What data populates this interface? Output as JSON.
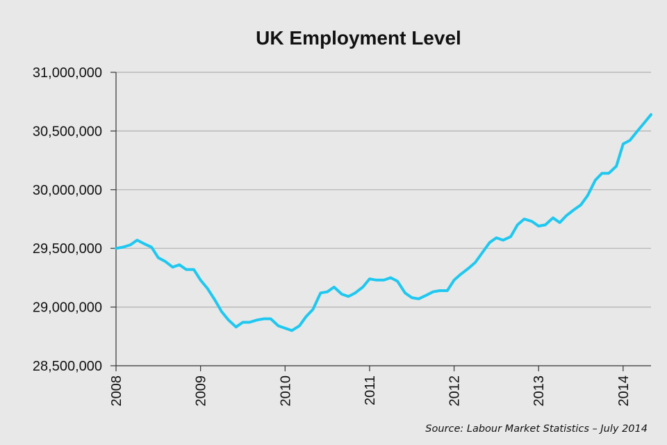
{
  "chart_data": {
    "type": "line",
    "title": "UK Employment Level",
    "source": "Source: Labour Market Statistics – July 2014",
    "xlabel": "",
    "ylabel": "",
    "xlim": [
      2008,
      2014.33
    ],
    "ylim": [
      28500000,
      31000000
    ],
    "y_ticks": [
      28500000,
      29000000,
      29500000,
      30000000,
      30500000,
      31000000
    ],
    "y_tick_labels": [
      "28,500,000",
      "29,000,000",
      "29,500,000",
      "30,000,000",
      "30,500,000",
      "31,000,000"
    ],
    "x_ticks": [
      2008,
      2009,
      2010,
      2011,
      2012,
      2013,
      2014
    ],
    "x_tick_labels": [
      "2008",
      "2009",
      "2010",
      "2011",
      "2012",
      "2013",
      "2014"
    ],
    "grid": true,
    "legend": "none",
    "colors": {
      "line": "#1ec8f0",
      "background": "#e8e8e8",
      "grid": "#b0b0b0"
    },
    "series": [
      {
        "x": [
          2008.0,
          2008.08,
          2008.17,
          2008.25,
          2008.33,
          2008.42,
          2008.5,
          2008.58,
          2008.67,
          2008.75,
          2008.83,
          2008.92,
          2009.0,
          2009.08,
          2009.17,
          2009.25,
          2009.33,
          2009.42,
          2009.5,
          2009.58,
          2009.67,
          2009.75,
          2009.83,
          2009.92,
          2010.0,
          2010.08,
          2010.17,
          2010.25,
          2010.33,
          2010.42,
          2010.5,
          2010.58,
          2010.67,
          2010.75,
          2010.83,
          2010.92,
          2011.0,
          2011.08,
          2011.17,
          2011.25,
          2011.33,
          2011.42,
          2011.5,
          2011.58,
          2011.67,
          2011.75,
          2011.83,
          2011.92,
          2012.0,
          2012.08,
          2012.17,
          2012.25,
          2012.33,
          2012.42,
          2012.5,
          2012.58,
          2012.67,
          2012.75,
          2012.83,
          2012.92,
          2013.0,
          2013.08,
          2013.17,
          2013.25,
          2013.33,
          2013.42,
          2013.5,
          2013.58,
          2013.67,
          2013.75,
          2013.83,
          2013.92,
          2014.0,
          2014.08,
          2014.17,
          2014.25,
          2014.33
        ],
        "values": [
          29500000,
          29510000,
          29530000,
          29570000,
          29540000,
          29510000,
          29420000,
          29390000,
          29340000,
          29360000,
          29320000,
          29320000,
          29230000,
          29160000,
          29060000,
          28960000,
          28890000,
          28830000,
          28870000,
          28870000,
          28890000,
          28900000,
          28900000,
          28840000,
          28820000,
          28800000,
          28840000,
          28920000,
          28980000,
          29120000,
          29130000,
          29170000,
          29110000,
          29090000,
          29120000,
          29170000,
          29240000,
          29230000,
          29230000,
          29250000,
          29220000,
          29120000,
          29080000,
          29070000,
          29100000,
          29130000,
          29140000,
          29140000,
          29230000,
          29280000,
          29330000,
          29380000,
          29460000,
          29550000,
          29590000,
          29570000,
          29600000,
          29700000,
          29750000,
          29730000,
          29690000,
          29700000,
          29760000,
          29720000,
          29780000,
          29830000,
          29870000,
          29950000,
          30080000,
          30140000,
          30140000,
          30200000,
          30390000,
          30420000,
          30500000,
          30570000,
          30640000
        ]
      }
    ]
  }
}
